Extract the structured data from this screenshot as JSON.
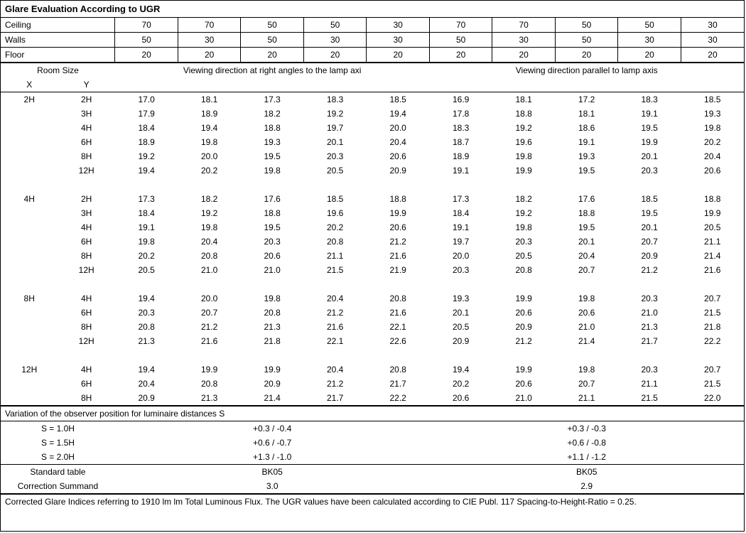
{
  "title": "Glare Evaluation According to UGR",
  "header_rows": [
    {
      "label": "Ceiling",
      "vals": [
        "70",
        "70",
        "50",
        "50",
        "30",
        "70",
        "70",
        "50",
        "50",
        "30"
      ]
    },
    {
      "label": "Walls",
      "vals": [
        "50",
        "30",
        "50",
        "30",
        "30",
        "50",
        "30",
        "50",
        "30",
        "30"
      ]
    },
    {
      "label": "Floor",
      "vals": [
        "20",
        "20",
        "20",
        "20",
        "20",
        "20",
        "20",
        "20",
        "20",
        "20"
      ]
    }
  ],
  "room_label": "Room Size",
  "room_x": "X",
  "room_y": "Y",
  "view_left": "Viewing direction at right angles to the lamp axi",
  "view_right": "Viewing direction parallel to lamp axis",
  "groups": [
    {
      "x": "2H",
      "rows": [
        {
          "y": "2H",
          "v": [
            "17.0",
            "18.1",
            "17.3",
            "18.3",
            "18.5",
            "16.9",
            "18.1",
            "17.2",
            "18.3",
            "18.5"
          ]
        },
        {
          "y": "3H",
          "v": [
            "17.9",
            "18.9",
            "18.2",
            "19.2",
            "19.4",
            "17.8",
            "18.8",
            "18.1",
            "19.1",
            "19.3"
          ]
        },
        {
          "y": "4H",
          "v": [
            "18.4",
            "19.4",
            "18.8",
            "19.7",
            "20.0",
            "18.3",
            "19.2",
            "18.6",
            "19.5",
            "19.8"
          ]
        },
        {
          "y": "6H",
          "v": [
            "18.9",
            "19.8",
            "19.3",
            "20.1",
            "20.4",
            "18.7",
            "19.6",
            "19.1",
            "19.9",
            "20.2"
          ]
        },
        {
          "y": "8H",
          "v": [
            "19.2",
            "20.0",
            "19.5",
            "20.3",
            "20.6",
            "18.9",
            "19.8",
            "19.3",
            "20.1",
            "20.4"
          ]
        },
        {
          "y": "12H",
          "v": [
            "19.4",
            "20.2",
            "19.8",
            "20.5",
            "20.9",
            "19.1",
            "19.9",
            "19.5",
            "20.3",
            "20.6"
          ]
        }
      ]
    },
    {
      "x": "4H",
      "rows": [
        {
          "y": "2H",
          "v": [
            "17.3",
            "18.2",
            "17.6",
            "18.5",
            "18.8",
            "17.3",
            "18.2",
            "17.6",
            "18.5",
            "18.8"
          ]
        },
        {
          "y": "3H",
          "v": [
            "18.4",
            "19.2",
            "18.8",
            "19.6",
            "19.9",
            "18.4",
            "19.2",
            "18.8",
            "19.5",
            "19.9"
          ]
        },
        {
          "y": "4H",
          "v": [
            "19.1",
            "19.8",
            "19.5",
            "20.2",
            "20.6",
            "19.1",
            "19.8",
            "19.5",
            "20.1",
            "20.5"
          ]
        },
        {
          "y": "6H",
          "v": [
            "19.8",
            "20.4",
            "20.3",
            "20.8",
            "21.2",
            "19.7",
            "20.3",
            "20.1",
            "20.7",
            "21.1"
          ]
        },
        {
          "y": "8H",
          "v": [
            "20.2",
            "20.8",
            "20.6",
            "21.1",
            "21.6",
            "20.0",
            "20.5",
            "20.4",
            "20.9",
            "21.4"
          ]
        },
        {
          "y": "12H",
          "v": [
            "20.5",
            "21.0",
            "21.0",
            "21.5",
            "21.9",
            "20.3",
            "20.8",
            "20.7",
            "21.2",
            "21.6"
          ]
        }
      ]
    },
    {
      "x": "8H",
      "rows": [
        {
          "y": "4H",
          "v": [
            "19.4",
            "20.0",
            "19.8",
            "20.4",
            "20.8",
            "19.3",
            "19.9",
            "19.8",
            "20.3",
            "20.7"
          ]
        },
        {
          "y": "6H",
          "v": [
            "20.3",
            "20.7",
            "20.8",
            "21.2",
            "21.6",
            "20.1",
            "20.6",
            "20.6",
            "21.0",
            "21.5"
          ]
        },
        {
          "y": "8H",
          "v": [
            "20.8",
            "21.2",
            "21.3",
            "21.6",
            "22.1",
            "20.5",
            "20.9",
            "21.0",
            "21.3",
            "21.8"
          ]
        },
        {
          "y": "12H",
          "v": [
            "21.3",
            "21.6",
            "21.8",
            "22.1",
            "22.6",
            "20.9",
            "21.2",
            "21.4",
            "21.7",
            "22.2"
          ]
        }
      ]
    },
    {
      "x": "12H",
      "rows": [
        {
          "y": "4H",
          "v": [
            "19.4",
            "19.9",
            "19.9",
            "20.4",
            "20.8",
            "19.4",
            "19.9",
            "19.8",
            "20.3",
            "20.7"
          ]
        },
        {
          "y": "6H",
          "v": [
            "20.4",
            "20.8",
            "20.9",
            "21.2",
            "21.7",
            "20.2",
            "20.6",
            "20.7",
            "21.1",
            "21.5"
          ]
        },
        {
          "y": "8H",
          "v": [
            "20.9",
            "21.3",
            "21.4",
            "21.7",
            "22.2",
            "20.6",
            "21.0",
            "21.1",
            "21.5",
            "22.0"
          ]
        }
      ]
    }
  ],
  "variation_title": "Variation of the observer position for luminaire distances S",
  "variation_rows": [
    {
      "label": "S = 1.0H",
      "left": "+0.3 / -0.4",
      "right": "+0.3 / -0.3"
    },
    {
      "label": "S = 1.5H",
      "left": "+0.6 / -0.7",
      "right": "+0.6 / -0.8"
    },
    {
      "label": "S = 2.0H",
      "left": "+1.3 / -1.0",
      "right": "+1.1 / -1.2"
    }
  ],
  "std_label": "Standard table",
  "std_left": "BK05",
  "std_right": "BK05",
  "corr_label": "Correction Summand",
  "corr_left": "3.0",
  "corr_right": "2.9",
  "footnote": "Corrected Glare Indices referring to 1910 lm lm Total Luminous Flux. The UGR values have been calculated according to CIE Publ. 117    Spacing-to-Height-Ratio = 0.25."
}
